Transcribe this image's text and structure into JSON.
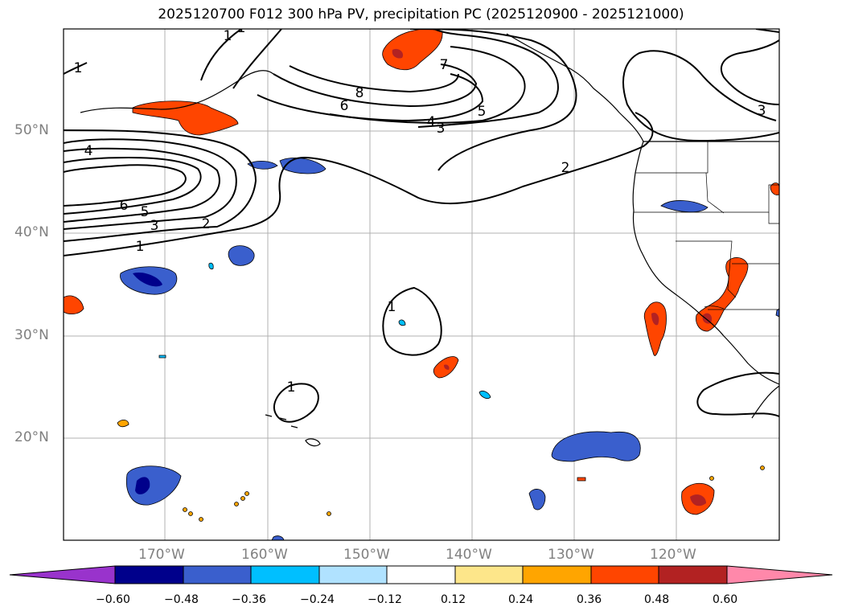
{
  "title": "2025120700 F012 300 hPa PV, precipitation PC (2025120900 - 2025121000)",
  "axes": {
    "lat_labels": [
      "50°N",
      "40°N",
      "30°N",
      "20°N"
    ],
    "lon_labels": [
      "170°W",
      "160°W",
      "150°W",
      "140°W",
      "130°W",
      "120°W"
    ]
  },
  "contour_labels": [
    "1",
    "1",
    "2",
    "3",
    "5",
    "6",
    "4",
    "1",
    "1",
    "2",
    "3",
    "4",
    "5",
    "6",
    "7",
    "8",
    "3",
    "1",
    "1"
  ],
  "colorbar": {
    "ticks": [
      "−0.60",
      "−0.48",
      "−0.36",
      "−0.24",
      "−0.12",
      "0.12",
      "0.24",
      "0.36",
      "0.48",
      "0.60"
    ],
    "colors": [
      "#9933cc",
      "#00008b",
      "#3a5fcd",
      "#00bfff",
      "#b0e2ff",
      "#ffffff",
      "#fde68a",
      "#ffa500",
      "#ff4500",
      "#b22222",
      "#ff88aa"
    ]
  }
}
